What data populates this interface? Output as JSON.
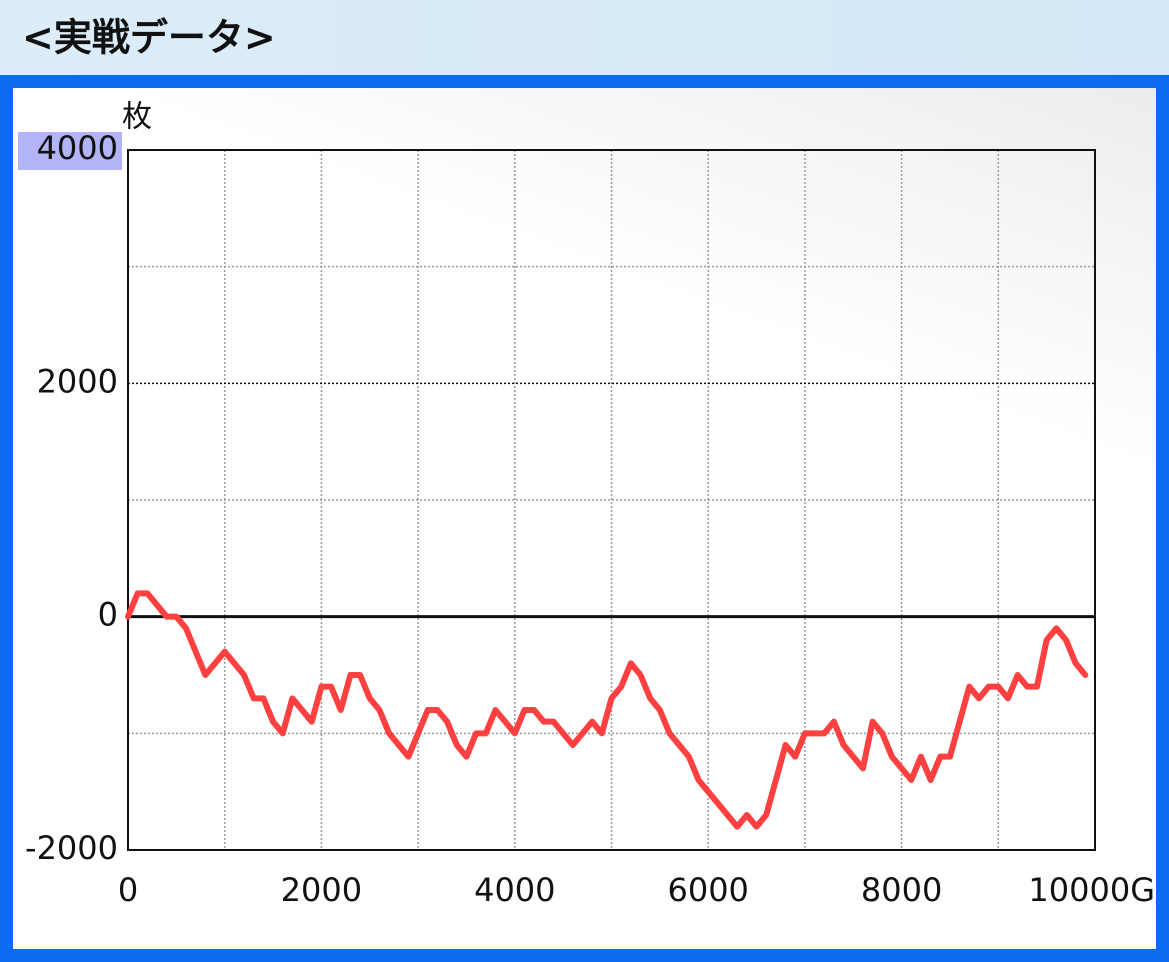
{
  "chart_data": {
    "type": "line",
    "title": "<実戦データ>",
    "y_label": "枚",
    "x": [
      0,
      100,
      200,
      400,
      500,
      600,
      800,
      1000,
      1200,
      1300,
      1400,
      1500,
      1600,
      1700,
      1900,
      2000,
      2100,
      2200,
      2300,
      2400,
      2500,
      2600,
      2700,
      2900,
      3000,
      3100,
      3200,
      3300,
      3400,
      3500,
      3600,
      3700,
      3800,
      4000,
      4100,
      4200,
      4300,
      4400,
      4600,
      4800,
      4900,
      5000,
      5100,
      5200,
      5300,
      5400,
      5500,
      5600,
      5800,
      5900,
      6000,
      6300,
      6400,
      6500,
      6600,
      6800,
      6900,
      7000,
      7200,
      7300,
      7400,
      7600,
      7700,
      7800,
      7900,
      8100,
      8200,
      8300,
      8400,
      8500,
      8700,
      8800,
      8900,
      9000,
      9100,
      9200,
      9300,
      9400,
      9500,
      9600,
      9700,
      9800,
      9900
    ],
    "series": [
      {
        "color": "#ff4040",
        "values": [
          0,
          200,
          200,
          0,
          0,
          -100,
          -500,
          -300,
          -500,
          -700,
          -700,
          -900,
          -1000,
          -700,
          -900,
          -600,
          -600,
          -800,
          -500,
          -500,
          -700,
          -800,
          -1000,
          -1200,
          -1000,
          -800,
          -800,
          -900,
          -1100,
          -1200,
          -1000,
          -1000,
          -800,
          -1000,
          -800,
          -800,
          -900,
          -900,
          -1100,
          -900,
          -1000,
          -700,
          -600,
          -400,
          -500,
          -700,
          -800,
          -1000,
          -1200,
          -1400,
          -1500,
          -1800,
          -1700,
          -1800,
          -1700,
          -1100,
          -1200,
          -1000,
          -1000,
          -900,
          -1100,
          -1300,
          -900,
          -1000,
          -1200,
          -1400,
          -1200,
          -1400,
          -1200,
          -1200,
          -600,
          -700,
          -600,
          -600,
          -700,
          -500,
          -600,
          -600,
          -200,
          -100,
          -200,
          -400,
          -500
        ]
      }
    ],
    "xlim": [
      0,
      10000
    ],
    "ylim": [
      -2000,
      4000
    ],
    "xticks": [
      0,
      2000,
      4000,
      6000,
      8000,
      {
        "value": 10000,
        "label": "10000G"
      }
    ],
    "yticks": [
      -2000,
      0,
      2000,
      4000
    ],
    "minor_xticks": [
      1000,
      3000,
      5000,
      7000,
      9000
    ],
    "minor_yticks": [
      -1000,
      1000,
      3000
    ],
    "grid": true
  }
}
